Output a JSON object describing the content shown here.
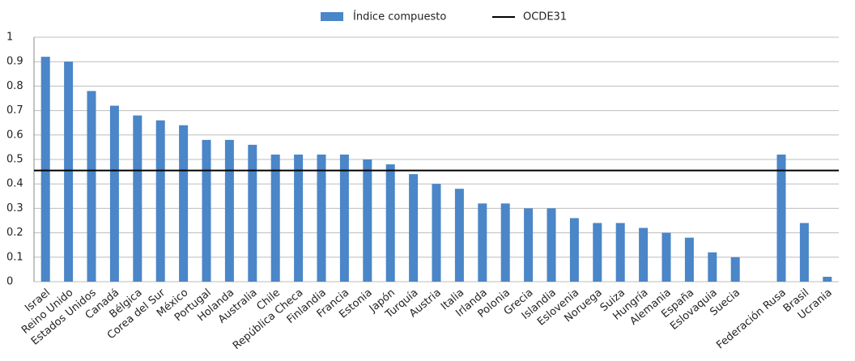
{
  "chart_data": {
    "type": "bar",
    "categories": [
      "Israel",
      "Reino Unido",
      "Estados Unidos",
      "Canadá",
      "Bélgica",
      "Corea del Sur",
      "México",
      "Portugal",
      "Holanda",
      "Australia",
      "Chile",
      "República Checa",
      "Finlandia",
      "Francia",
      "Estonia",
      "Japón",
      "Turquía",
      "Austria",
      "Italia",
      "Irlanda",
      "Polonia",
      "Grecia",
      "Islandia",
      "Eslovenia",
      "Noruega",
      "Suiza",
      "Hungría",
      "Alemania",
      "España",
      "Eslovaquia",
      "Suecia",
      null,
      "Federación Rusa",
      "Brasil",
      "Ucrania"
    ],
    "series": [
      {
        "name": "Índice compuesto",
        "color": "#4a86c8",
        "values": [
          0.92,
          0.9,
          0.78,
          0.72,
          0.68,
          0.66,
          0.64,
          0.58,
          0.58,
          0.56,
          0.52,
          0.52,
          0.52,
          0.52,
          0.5,
          0.48,
          0.44,
          0.4,
          0.38,
          0.32,
          0.32,
          0.3,
          0.3,
          0.26,
          0.24,
          0.24,
          0.22,
          0.2,
          0.18,
          0.12,
          0.1,
          null,
          0.52,
          0.24,
          0.02
        ]
      }
    ],
    "reference_line": {
      "name": "OCDE31",
      "value": 0.455,
      "color": "#000000"
    },
    "ylim": [
      0,
      1
    ],
    "yticks": [
      0,
      0.1,
      0.2,
      0.3,
      0.4,
      0.5,
      0.6,
      0.7,
      0.8,
      0.9,
      1
    ],
    "grid": true,
    "legend": "top"
  }
}
